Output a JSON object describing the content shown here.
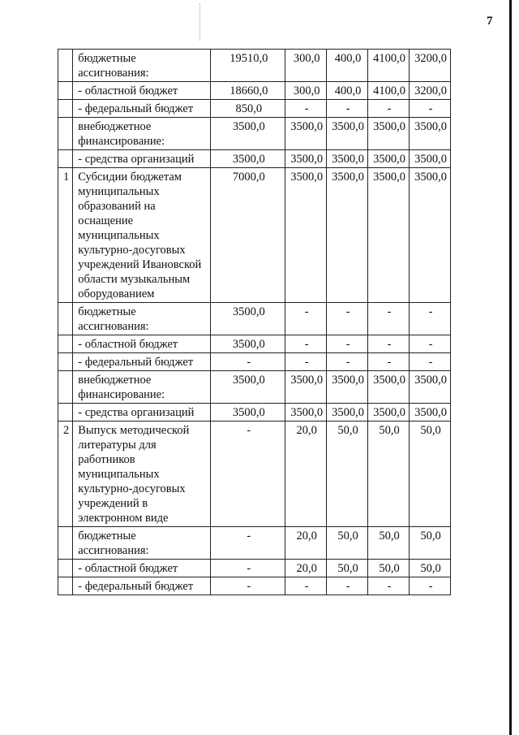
{
  "page_mark": "7",
  "rows": [
    {
      "num": "",
      "label": "бюджетные ассигнования:",
      "values": [
        "19510,0",
        "300,0",
        "400,0",
        "4100,0",
        "3200,0"
      ]
    },
    {
      "num": "",
      "label": "- областной бюджет",
      "values": [
        "18660,0",
        "300,0",
        "400,0",
        "4100,0",
        "3200,0"
      ]
    },
    {
      "num": "",
      "label": "- федеральный бюджет",
      "values": [
        "850,0",
        "-",
        "-",
        "-",
        "-"
      ]
    },
    {
      "num": "",
      "label": "внебюджетное финансирование:",
      "values": [
        "3500,0",
        "3500,0",
        "3500,0",
        "3500,0",
        "3500,0"
      ]
    },
    {
      "num": "",
      "label": "- средства организаций",
      "values": [
        "3500,0",
        "3500,0",
        "3500,0",
        "3500,0",
        "3500,0"
      ]
    },
    {
      "num": "1",
      "label": "Субсидии бюджетам муниципальных образований на оснащение муниципальных культурно-досуговых учреждений Ивановской области музыкальным оборудованием",
      "values": [
        "7000,0",
        "3500,0",
        "3500,0",
        "3500,0",
        "3500,0"
      ]
    },
    {
      "num": "",
      "label": "бюджетные ассигнования:",
      "values": [
        "3500,0",
        "-",
        "-",
        "-",
        "-"
      ]
    },
    {
      "num": "",
      "label": "- областной бюджет",
      "values": [
        "3500,0",
        "-",
        "-",
        "-",
        "-"
      ]
    },
    {
      "num": "",
      "label": "- федеральный бюджет",
      "values": [
        "-",
        "-",
        "-",
        "-",
        "-"
      ]
    },
    {
      "num": "",
      "label": "внебюджетное финансирование:",
      "values": [
        "3500,0",
        "3500,0",
        "3500,0",
        "3500,0",
        "3500,0"
      ]
    },
    {
      "num": "",
      "label": "- средства организаций",
      "values": [
        "3500,0",
        "3500,0",
        "3500,0",
        "3500,0",
        "3500,0"
      ]
    },
    {
      "num": "2",
      "label": "Выпуск методической литературы для работников муниципальных культурно-досуговых учреждений в электронном виде",
      "values": [
        "-",
        "20,0",
        "50,0",
        "50,0",
        "50,0"
      ]
    },
    {
      "num": "",
      "label": "бюджетные ассигнования:",
      "values": [
        "-",
        "20,0",
        "50,0",
        "50,0",
        "50,0"
      ]
    },
    {
      "num": "",
      "label": "- областной бюджет",
      "values": [
        "-",
        "20,0",
        "50,0",
        "50,0",
        "50,0"
      ]
    },
    {
      "num": "",
      "label": "- федеральный бюджет",
      "values": [
        "-",
        "-",
        "-",
        "-",
        "-"
      ]
    }
  ]
}
